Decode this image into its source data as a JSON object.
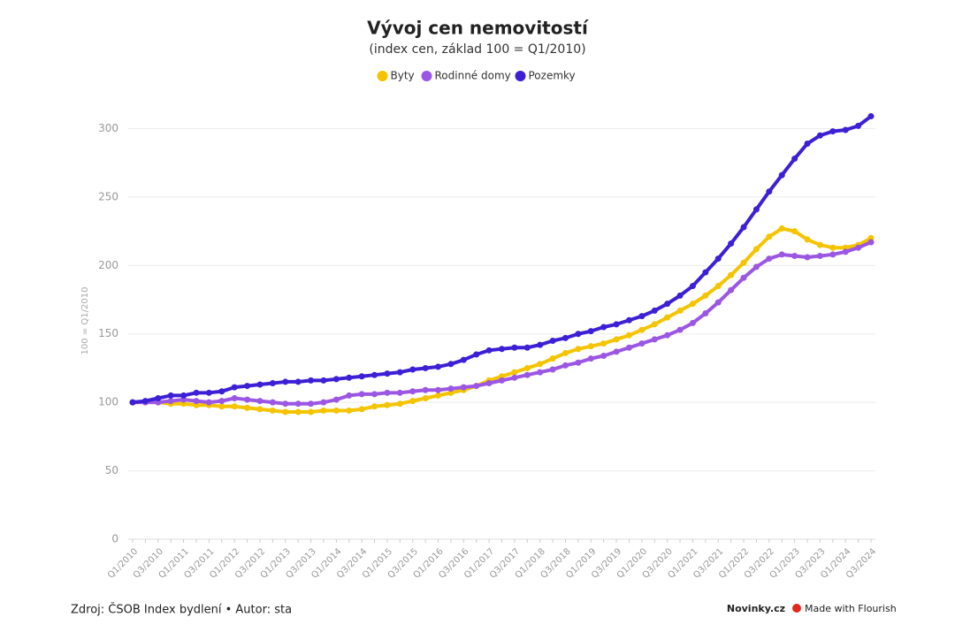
{
  "chart_data": {
    "type": "line",
    "title": "Vývoj cen nemovitostí",
    "subtitle": "(index cen, základ 100 = Q1/2010)",
    "ylabel": "100 = Q1/2010",
    "source": "Zdroj: ČSOB Index bydlení • Autor: sta",
    "brand": "Novinky.cz",
    "credit": "Made with Flourish",
    "categories": [
      "Q1/2010",
      null,
      "Q3/2010",
      null,
      "Q1/2011",
      null,
      "Q3/2011",
      null,
      "Q1/2012",
      null,
      "Q3/2012",
      null,
      "Q1/2013",
      null,
      "Q3/2013",
      null,
      "Q1/2014",
      null,
      "Q3/2014",
      null,
      "Q1/2015",
      null,
      "Q3/2015",
      null,
      "Q1/2016",
      null,
      "Q3/2016",
      null,
      "Q1/2017",
      null,
      "Q3/2017",
      null,
      "Q1/2018",
      null,
      "Q3/2018",
      null,
      "Q1/2019",
      null,
      "Q3/2019",
      null,
      "Q1/2020",
      null,
      "Q3/2020",
      null,
      "Q1/2021",
      null,
      "Q3/2021",
      null,
      "Q1/2022",
      null,
      "Q3/2022",
      null,
      "Q1/2023",
      null,
      "Q3/2023",
      null,
      "Q1/2024",
      null,
      "Q3/2024"
    ],
    "series": [
      {
        "name": "Byty",
        "color": "#f5c400",
        "values": [
          100,
          100,
          100,
          99,
          99,
          98,
          98,
          97,
          97,
          96,
          95,
          94,
          93,
          93,
          93,
          94,
          94,
          94,
          95,
          97,
          98,
          99,
          101,
          103,
          105,
          107,
          109,
          112,
          116,
          119,
          122,
          125,
          128,
          132,
          136,
          139,
          141,
          143,
          146,
          149,
          153,
          157,
          162,
          167,
          172,
          178,
          185,
          193,
          202,
          212,
          221,
          227,
          225,
          219,
          215,
          213,
          213,
          215,
          220
        ]
      },
      {
        "name": "Rodinné domy",
        "color": "#9b57e3",
        "values": [
          100,
          100,
          100,
          101,
          102,
          101,
          100,
          101,
          103,
          102,
          101,
          100,
          99,
          99,
          99,
          100,
          102,
          105,
          106,
          106,
          107,
          107,
          108,
          109,
          109,
          110,
          111,
          112,
          114,
          116,
          118,
          120,
          122,
          124,
          127,
          129,
          132,
          134,
          137,
          140,
          143,
          146,
          149,
          153,
          158,
          165,
          173,
          182,
          191,
          199,
          205,
          208,
          207,
          206,
          207,
          208,
          210,
          213,
          217
        ]
      },
      {
        "name": "Pozemky",
        "color": "#3d1fd6",
        "values": [
          100,
          101,
          103,
          105,
          105,
          107,
          107,
          108,
          111,
          112,
          113,
          114,
          115,
          115,
          116,
          116,
          117,
          118,
          119,
          120,
          121,
          122,
          124,
          125,
          126,
          128,
          131,
          135,
          138,
          139,
          140,
          140,
          142,
          145,
          147,
          150,
          152,
          155,
          157,
          160,
          163,
          167,
          172,
          178,
          185,
          195,
          205,
          216,
          228,
          241,
          254,
          266,
          278,
          289,
          295,
          298,
          299,
          302,
          309
        ]
      }
    ],
    "ylim": [
      0,
      310
    ],
    "yticks": [
      0,
      50,
      100,
      150,
      200,
      250,
      300
    ],
    "grid": true,
    "legend": "top"
  }
}
